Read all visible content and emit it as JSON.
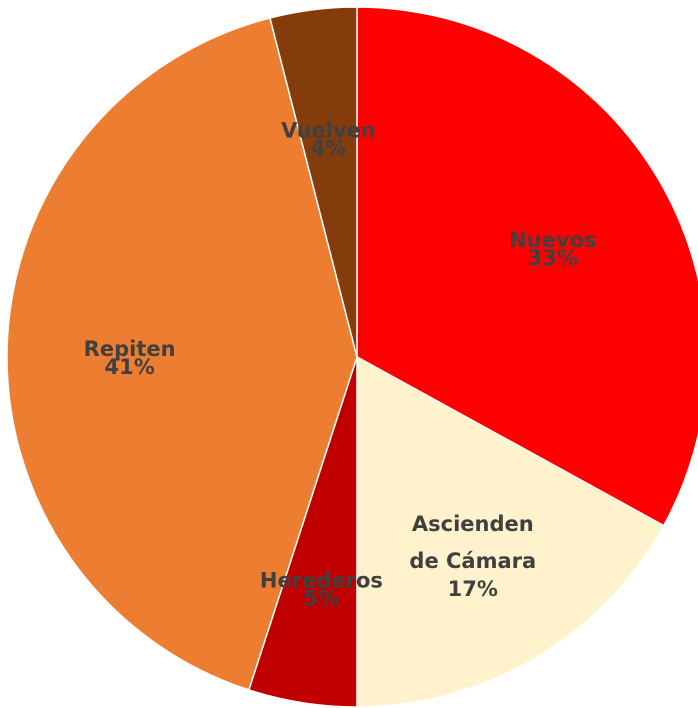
{
  "chart_data": {
    "type": "pie",
    "categories": [
      "Nuevos",
      "Ascienden de Cámara",
      "Herederos",
      "Repiten",
      "Vuelven"
    ],
    "values": [
      33,
      17,
      5,
      41,
      4
    ],
    "value_labels": [
      "33%",
      "17%",
      "5%",
      "41%",
      "4%"
    ],
    "colors": [
      "#ff0000",
      "#fff2cc",
      "#c00000",
      "#ed7d31",
      "#843c0c"
    ]
  }
}
